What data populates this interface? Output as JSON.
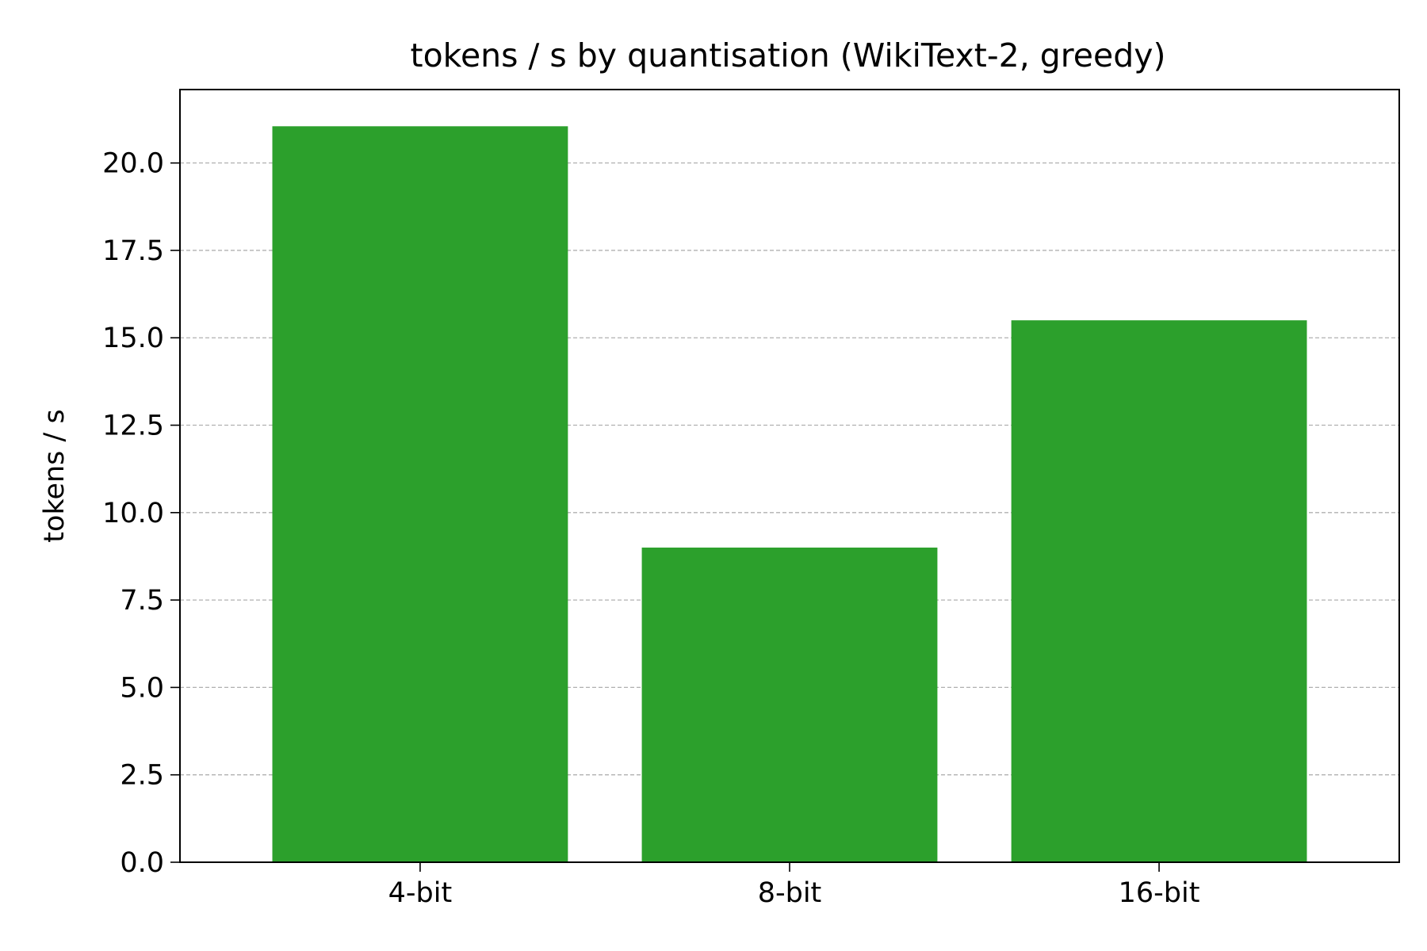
{
  "chart_data": {
    "type": "bar",
    "title": "tokens / s by quantisation (WikiText-2, greedy)",
    "xlabel": "",
    "ylabel": "tokens / s",
    "categories": [
      "4-bit",
      "8-bit",
      "16-bit"
    ],
    "series": [
      {
        "values": [
          21.05,
          9.0,
          15.5
        ]
      }
    ],
    "ylim": [
      0,
      22.1
    ],
    "yticks": [
      0.0,
      2.5,
      5.0,
      7.5,
      10.0,
      12.5,
      15.0,
      17.5,
      20.0
    ],
    "ytick_labels": [
      "0.0",
      "2.5",
      "5.0",
      "7.5",
      "10.0",
      "12.5",
      "15.0",
      "17.5",
      "20.0"
    ],
    "grid": {
      "axis": "y",
      "style": "dashed"
    },
    "bar_color": "#2ca02c",
    "grid_color": "#b0b0b0"
  }
}
